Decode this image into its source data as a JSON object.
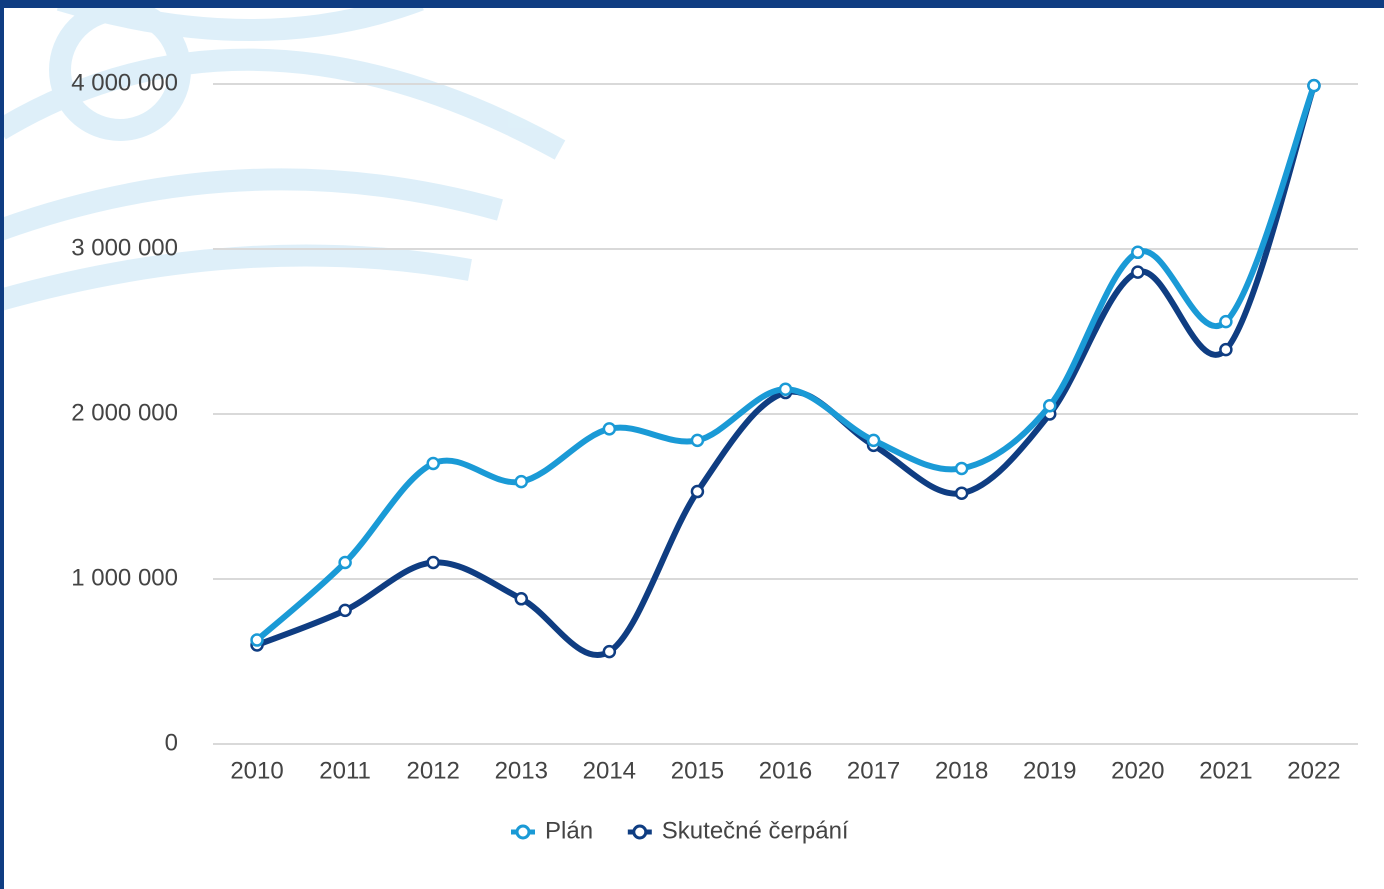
{
  "chart_data": {
    "type": "line",
    "categories": [
      "2010",
      "2011",
      "2012",
      "2013",
      "2014",
      "2015",
      "2016",
      "2017",
      "2018",
      "2019",
      "2020",
      "2021",
      "2022"
    ],
    "series": [
      {
        "name": "Plán",
        "color": "#1a9ad6",
        "values": [
          630000,
          1100000,
          1700000,
          1590000,
          1910000,
          1840000,
          2150000,
          1840000,
          1670000,
          2050000,
          2980000,
          2560000,
          3990000
        ]
      },
      {
        "name": "Skutečné čerpání",
        "color": "#0f3d82",
        "values": [
          600000,
          810000,
          1100000,
          880000,
          560000,
          1530000,
          2130000,
          1810000,
          1520000,
          2000000,
          2860000,
          2390000,
          3990000
        ]
      }
    ],
    "ylim": [
      0,
      4000000
    ],
    "yticks": [
      0,
      {
        "value": 1000000,
        "label": "1 000 000"
      },
      {
        "value": 2000000,
        "label": "2 000 000"
      },
      {
        "value": 3000000,
        "label": "3 000 000"
      },
      {
        "value": 4000000,
        "label": "4 000 000"
      }
    ],
    "grid": true,
    "smooth": true,
    "legend": "bottom"
  }
}
